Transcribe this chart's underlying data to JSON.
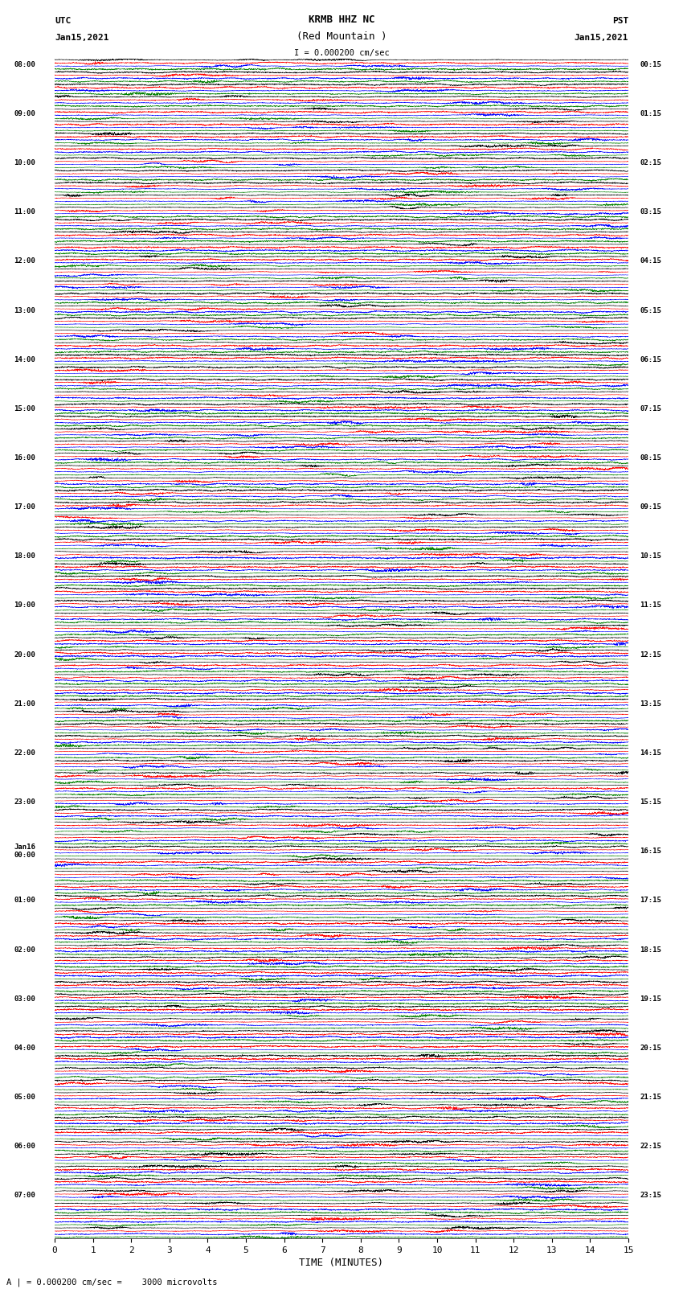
{
  "title_line1": "KRMB HHZ NC",
  "title_line2": "(Red Mountain )",
  "title_scale": "I = 0.000200 cm/sec",
  "left_header_line1": "UTC",
  "left_header_line2": "Jan15,2021",
  "right_header_line1": "PST",
  "right_header_line2": "Jan15,2021",
  "left_times": [
    "08:00",
    "",
    "",
    "",
    "09:00",
    "",
    "",
    "",
    "10:00",
    "",
    "",
    "",
    "11:00",
    "",
    "",
    "",
    "12:00",
    "",
    "",
    "",
    "13:00",
    "",
    "",
    "",
    "14:00",
    "",
    "",
    "",
    "15:00",
    "",
    "",
    "",
    "16:00",
    "",
    "",
    "",
    "17:00",
    "",
    "",
    "",
    "18:00",
    "",
    "",
    "",
    "19:00",
    "",
    "",
    "",
    "20:00",
    "",
    "",
    "",
    "21:00",
    "",
    "",
    "",
    "22:00",
    "",
    "",
    "",
    "23:00",
    "",
    "",
    "",
    "Jan16\n00:00",
    "",
    "",
    "",
    "01:00",
    "",
    "",
    "",
    "02:00",
    "",
    "",
    "",
    "03:00",
    "",
    "",
    "",
    "04:00",
    "",
    "",
    "",
    "05:00",
    "",
    "",
    "",
    "06:00",
    "",
    "",
    "",
    "07:00",
    "",
    "",
    ""
  ],
  "right_times": [
    "00:15",
    "",
    "",
    "",
    "01:15",
    "",
    "",
    "",
    "02:15",
    "",
    "",
    "",
    "03:15",
    "",
    "",
    "",
    "04:15",
    "",
    "",
    "",
    "05:15",
    "",
    "",
    "",
    "06:15",
    "",
    "",
    "",
    "07:15",
    "",
    "",
    "",
    "08:15",
    "",
    "",
    "",
    "09:15",
    "",
    "",
    "",
    "10:15",
    "",
    "",
    "",
    "11:15",
    "",
    "",
    "",
    "12:15",
    "",
    "",
    "",
    "13:15",
    "",
    "",
    "",
    "14:15",
    "",
    "",
    "",
    "15:15",
    "",
    "",
    "",
    "16:15",
    "",
    "",
    "",
    "17:15",
    "",
    "",
    "",
    "18:15",
    "",
    "",
    "",
    "19:15",
    "",
    "",
    "",
    "20:15",
    "",
    "",
    "",
    "21:15",
    "",
    "",
    "",
    "22:15",
    "",
    "",
    "",
    "23:15",
    "",
    "",
    ""
  ],
  "colors": [
    "black",
    "red",
    "blue",
    "green"
  ],
  "n_rows": 96,
  "x_min": 0,
  "x_max": 15,
  "xlabel": "TIME (MINUTES)",
  "xticks": [
    0,
    1,
    2,
    3,
    4,
    5,
    6,
    7,
    8,
    9,
    10,
    11,
    12,
    13,
    14,
    15
  ],
  "footnote": "A | = 0.000200 cm/sec =    3000 microvolts",
  "bg_color": "white",
  "seed": 42
}
